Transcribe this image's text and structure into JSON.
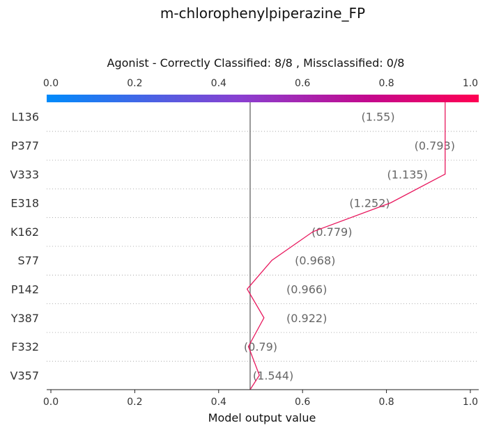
{
  "chart_data": {
    "type": "line",
    "title": "m-chlorophenylpiperazine_FP",
    "subtitle": "Agonist - Correctly Classified: 8/8 , Missclassified: 0/8",
    "xlabel": "Model output value",
    "xlim": [
      -0.01,
      1.02
    ],
    "xticks": [
      0.0,
      0.2,
      0.4,
      0.6,
      0.8,
      1.0
    ],
    "xtick_labels": [
      "0.0",
      "0.2",
      "0.4",
      "0.6",
      "0.8",
      "1.0"
    ],
    "base_value": 0.475,
    "features": [
      "L136",
      "P377",
      "V333",
      "E318",
      "K162",
      "S77",
      "P142",
      "Y387",
      "F332",
      "V357"
    ],
    "feature_values": [
      "(1.55)",
      "(0.793)",
      "(1.135)",
      "(1.252)",
      "(0.779)",
      "(0.968)",
      "(0.966)",
      "(0.922)",
      "(0.79)",
      "(1.544)"
    ],
    "value_label_x": [
      0.78,
      0.915,
      0.85,
      0.76,
      0.67,
      0.63,
      0.61,
      0.61,
      0.5,
      0.53
    ],
    "path_x": [
      0.475,
      0.497,
      0.471,
      0.508,
      0.468,
      0.527,
      0.625,
      0.81,
      0.94,
      0.94
    ],
    "path_y": [
      0,
      0.5,
      1,
      1.5,
      2,
      2.5,
      3,
      3.5,
      4.4,
      4.4
    ],
    "line_color": "#e8175d",
    "base_line_color": "#808080",
    "colorbar": [
      "#008bfb",
      "#8a3fd0",
      "#c4088c",
      "#ff0052"
    ],
    "grid": "dotted horizontal"
  }
}
